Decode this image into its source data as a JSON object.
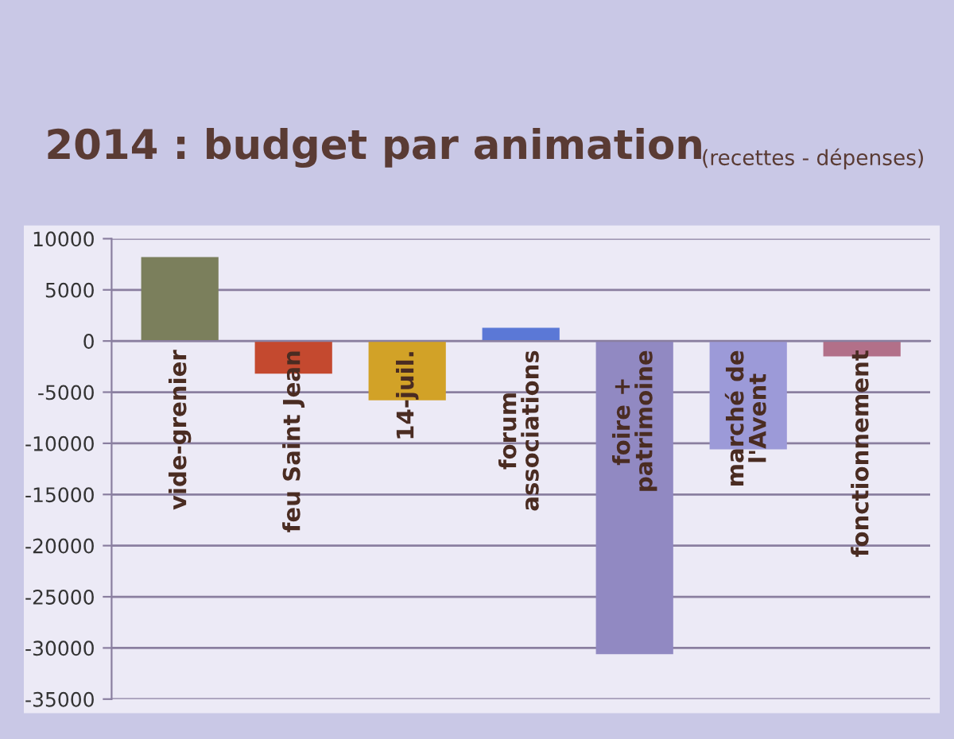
{
  "chart_data": {
    "type": "bar",
    "title": "2014 : budget par animation",
    "subtitle": "(recettes - dépenses)",
    "categories": [
      "vide-grenier",
      "feu Saint Jean",
      "14-juil.",
      "forum\nassociations",
      "foire +\npatrimoine",
      "marché de\nl'Avent",
      "fonctionnement"
    ],
    "values": [
      8200,
      -3200,
      -5800,
      1300,
      -30600,
      -10600,
      -1500
    ],
    "colors": [
      "#7b7f5c",
      "#c4492f",
      "#d2a227",
      "#5b78d6",
      "#9189c2",
      "#9c9ad8",
      "#b27089"
    ],
    "ylim": [
      -35000,
      10000
    ],
    "yticks": [
      -35000,
      -30000,
      -25000,
      -20000,
      -15000,
      -10000,
      -5000,
      0,
      5000,
      10000
    ],
    "grid": "y"
  }
}
